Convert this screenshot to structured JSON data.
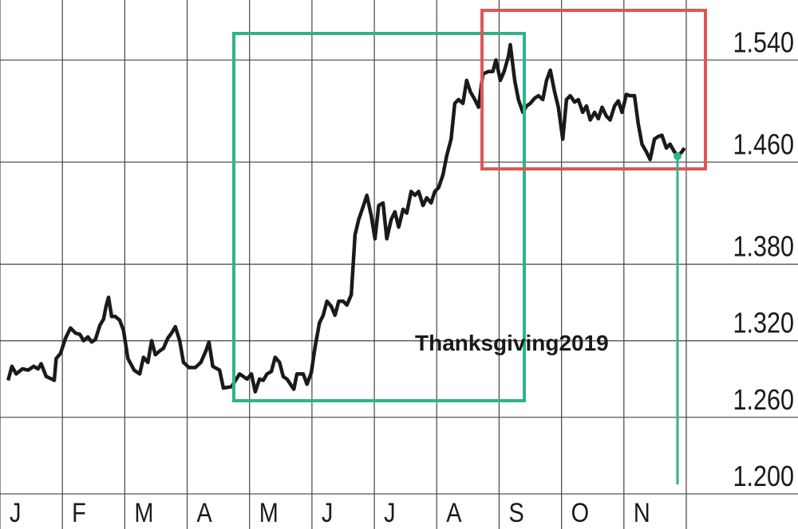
{
  "chart_data": {
    "type": "line",
    "annotations": [
      "Thanksgiving2019"
    ],
    "categories": [
      "J",
      "F",
      "M",
      "A",
      "M",
      "J",
      "J",
      "A",
      "S",
      "O",
      "N"
    ],
    "xlim": [
      0,
      11
    ],
    "ylim": [
      1.1725,
      1.587
    ],
    "yticks": [
      {
        "value": 1.54,
        "label": "1.540"
      },
      {
        "value": 1.46,
        "label": "1.460"
      },
      {
        "value": 1.38,
        "label": "1.380"
      },
      {
        "value": 1.32,
        "label": "1.320"
      },
      {
        "value": 1.26,
        "label": "1.260"
      },
      {
        "value": 1.2,
        "label": "1.200"
      }
    ],
    "grid": true,
    "series": [
      {
        "color": "#1a1a1a",
        "x": [
          0.13,
          0.19,
          0.26,
          0.36,
          0.45,
          0.54,
          0.61,
          0.66,
          0.74,
          0.83,
          0.87,
          0.9,
          0.97,
          1.05,
          1.13,
          1.21,
          1.28,
          1.34,
          1.41,
          1.47,
          1.53,
          1.6,
          1.66,
          1.7,
          1.74,
          1.79,
          1.85,
          1.92,
          1.98,
          2.05,
          2.15,
          2.24,
          2.3,
          2.37,
          2.43,
          2.49,
          2.56,
          2.62,
          2.69,
          2.75,
          2.81,
          2.88,
          2.94,
          3.03,
          3.13,
          3.22,
          3.3,
          3.35,
          3.41,
          3.52,
          3.58,
          3.71,
          3.84,
          3.96,
          4.03,
          4.09,
          4.16,
          4.22,
          4.28,
          4.35,
          4.41,
          4.48,
          4.54,
          4.6,
          4.71,
          4.76,
          4.86,
          4.92,
          4.99,
          5.05,
          5.12,
          5.18,
          5.24,
          5.31,
          5.37,
          5.43,
          5.5,
          5.56,
          5.63,
          5.69,
          5.75,
          5.82,
          5.88,
          5.95,
          6.01,
          6.07,
          6.14,
          6.2,
          6.27,
          6.33,
          6.39,
          6.46,
          6.52,
          6.59,
          6.65,
          6.71,
          6.78,
          6.84,
          6.91,
          6.97,
          7.03,
          7.1,
          7.16,
          7.23,
          7.29,
          7.35,
          7.42,
          7.48,
          7.54,
          7.61,
          7.67,
          7.74,
          7.83,
          7.9,
          7.95,
          8.02,
          8.08,
          8.15,
          8.18,
          8.25,
          8.31,
          8.38,
          8.44,
          8.5,
          8.57,
          8.63,
          8.7,
          8.76,
          8.82,
          8.89,
          8.95,
          9.02,
          9.08,
          9.14,
          9.21,
          9.27,
          9.34,
          9.4,
          9.46,
          9.53,
          9.59,
          9.65,
          9.72,
          9.78,
          9.85,
          9.91,
          9.97,
          10.04,
          10.1,
          10.17,
          10.23,
          10.29,
          10.36,
          10.42,
          10.49,
          10.55,
          10.61,
          10.68,
          10.74,
          10.81,
          10.87,
          10.93,
          10.97
        ],
        "values": [
          1.289,
          1.3,
          1.294,
          1.298,
          1.297,
          1.3,
          1.298,
          1.302,
          1.292,
          1.29,
          1.289,
          1.306,
          1.31,
          1.322,
          1.33,
          1.326,
          1.325,
          1.32,
          1.323,
          1.319,
          1.321,
          1.332,
          1.337,
          1.347,
          1.354,
          1.339,
          1.339,
          1.336,
          1.328,
          1.306,
          1.297,
          1.294,
          1.307,
          1.303,
          1.32,
          1.309,
          1.312,
          1.314,
          1.322,
          1.326,
          1.331,
          1.32,
          1.303,
          1.299,
          1.299,
          1.303,
          1.312,
          1.319,
          1.3,
          1.297,
          1.283,
          1.284,
          1.294,
          1.29,
          1.294,
          1.28,
          1.29,
          1.289,
          1.294,
          1.296,
          1.307,
          1.303,
          1.292,
          1.29,
          1.282,
          1.294,
          1.294,
          1.286,
          1.295,
          1.315,
          1.334,
          1.34,
          1.351,
          1.347,
          1.34,
          1.351,
          1.351,
          1.348,
          1.356,
          1.403,
          1.415,
          1.425,
          1.434,
          1.418,
          1.4,
          1.426,
          1.428,
          1.4,
          1.415,
          1.421,
          1.409,
          1.423,
          1.42,
          1.437,
          1.434,
          1.437,
          1.426,
          1.432,
          1.428,
          1.437,
          1.44,
          1.45,
          1.465,
          1.478,
          1.506,
          1.509,
          1.506,
          1.524,
          1.515,
          1.509,
          1.503,
          1.529,
          1.531,
          1.531,
          1.54,
          1.524,
          1.531,
          1.543,
          1.552,
          1.524,
          1.509,
          1.499,
          1.504,
          1.506,
          1.51,
          1.512,
          1.509,
          1.524,
          1.532,
          1.515,
          1.503,
          1.478,
          1.509,
          1.512,
          1.507,
          1.509,
          1.499,
          1.504,
          1.493,
          1.499,
          1.494,
          1.503,
          1.496,
          1.493,
          1.504,
          1.508,
          1.499,
          1.513,
          1.512,
          1.512,
          1.49,
          1.474,
          1.468,
          1.462,
          1.478,
          1.48,
          1.481,
          1.471,
          1.474,
          1.468,
          1.465,
          1.468,
          1.471
        ]
      }
    ]
  }
}
